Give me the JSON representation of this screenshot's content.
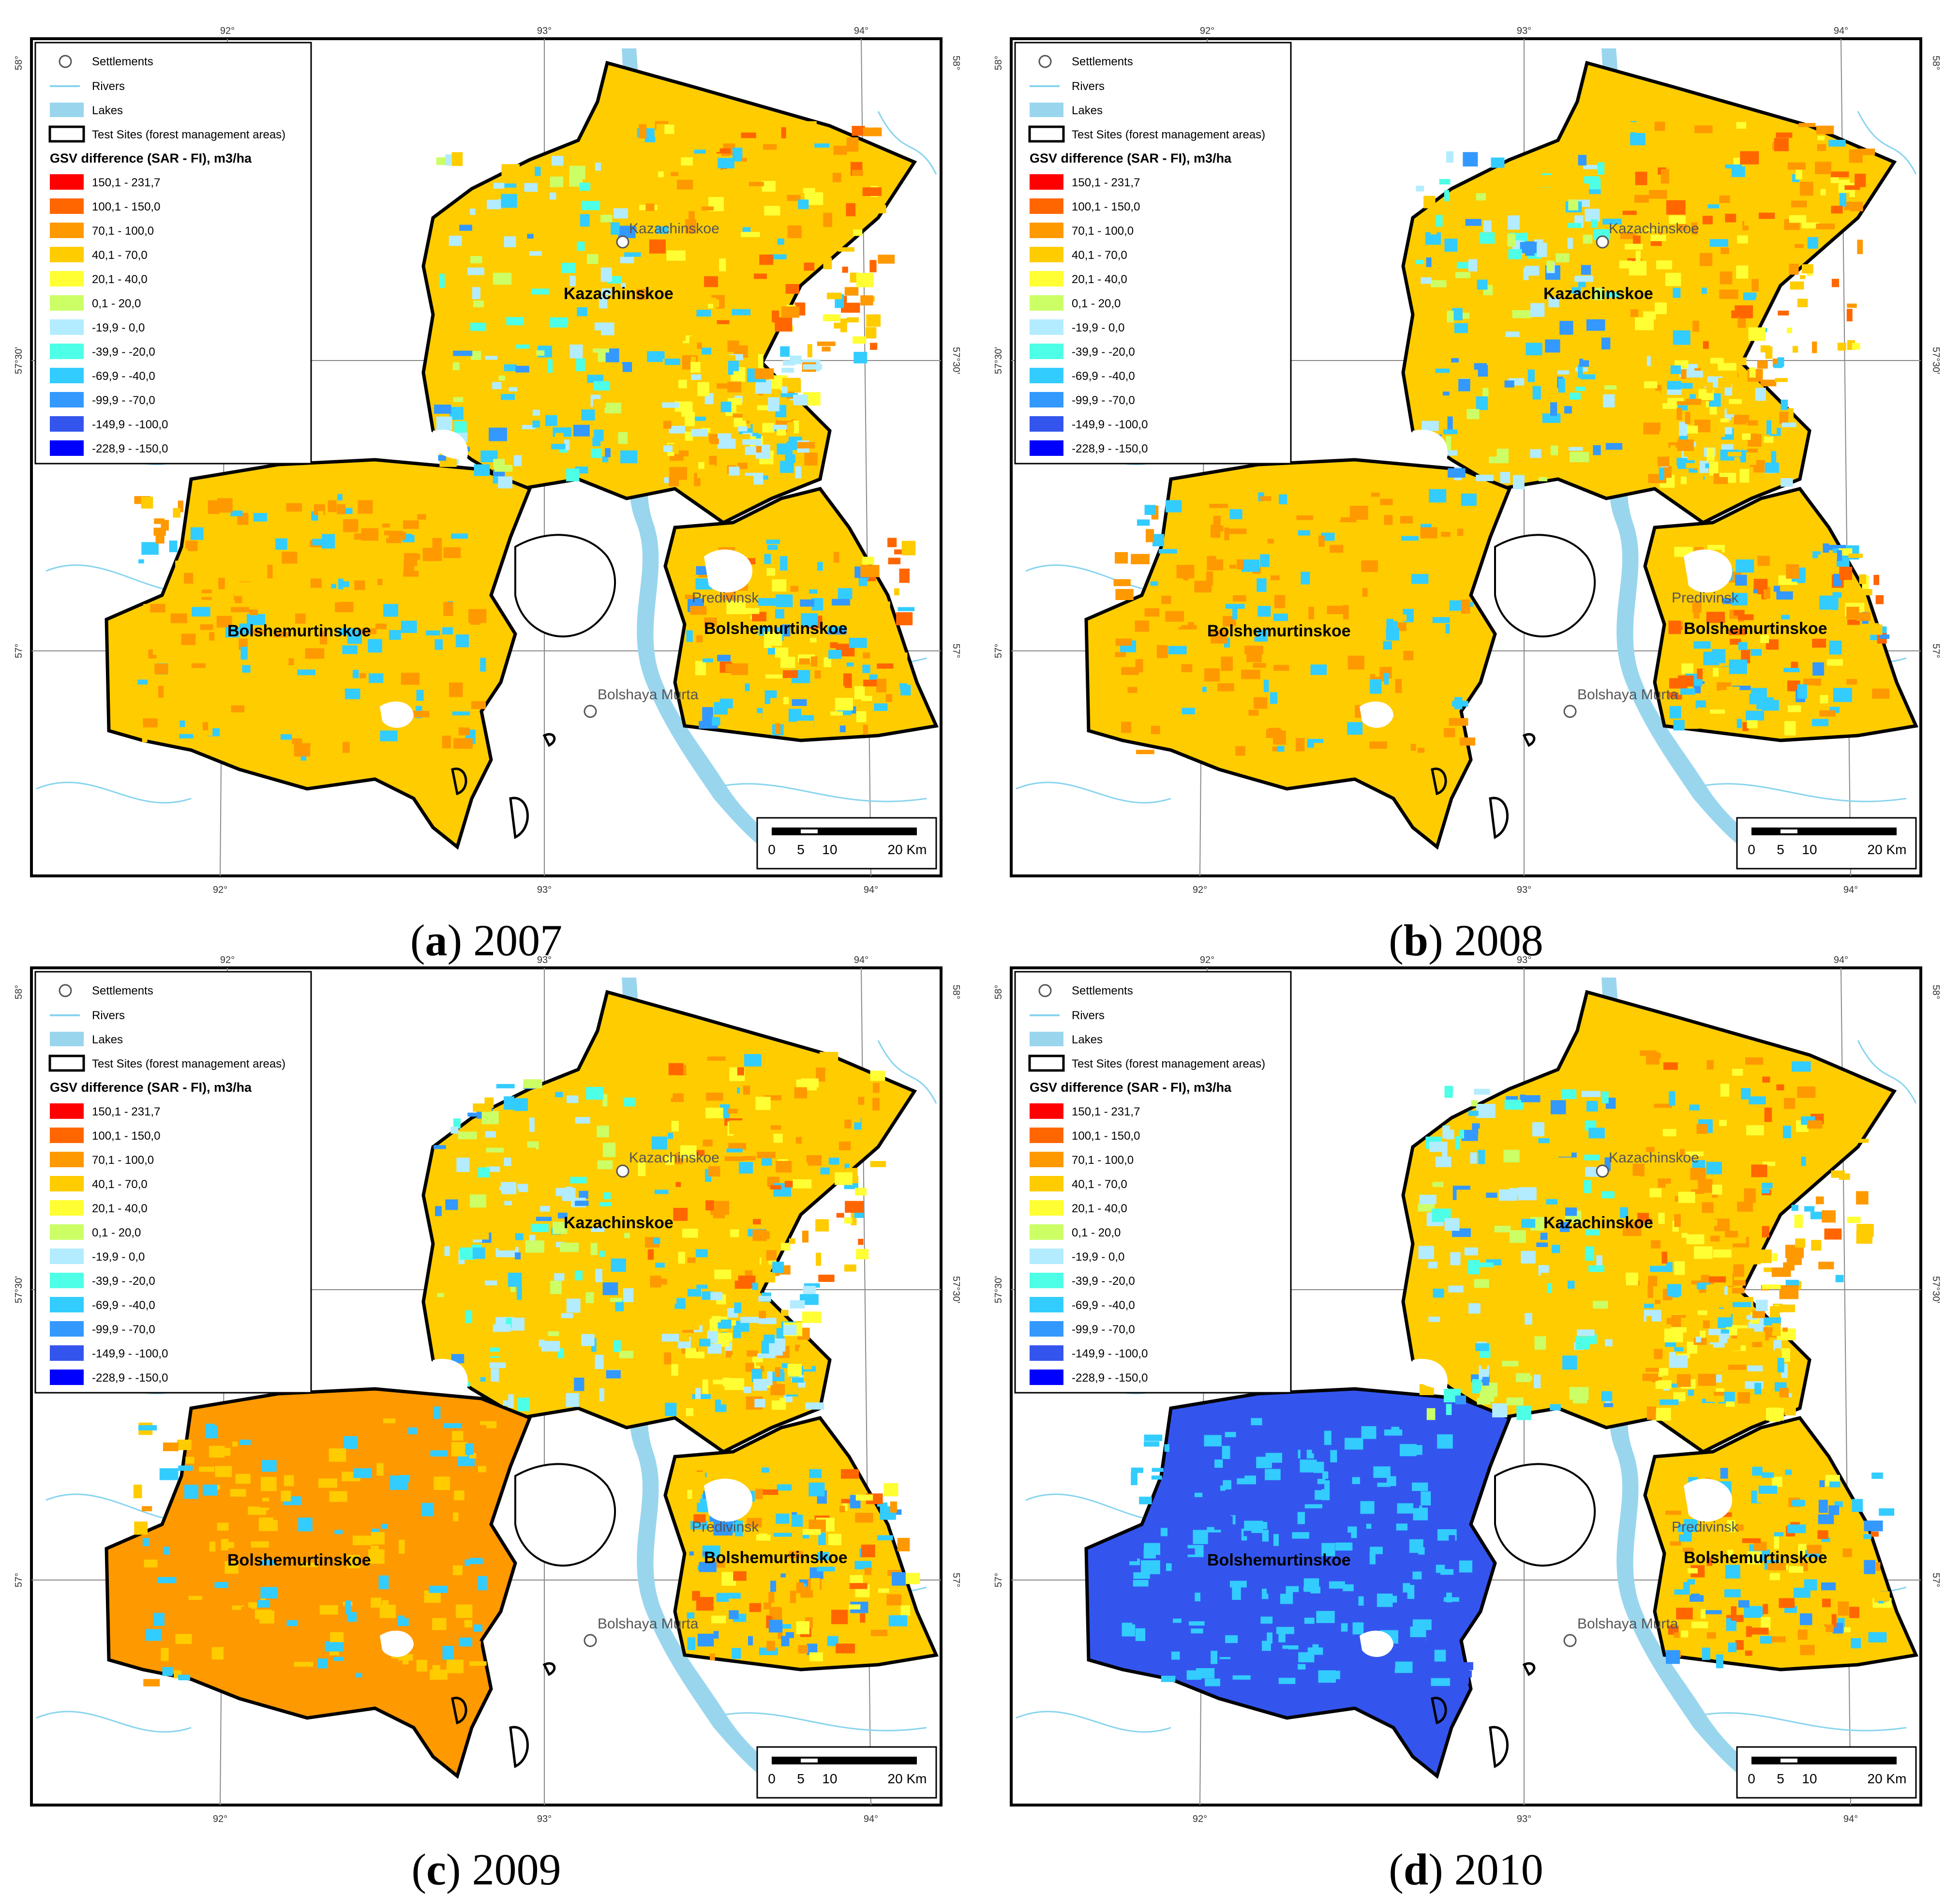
{
  "legend": {
    "settlements": "Settlements",
    "rivers": "Rivers",
    "lakes": "Lakes",
    "test_sites": "Test Sites (forest management areas)",
    "title": "GSV difference (SAR -  FI), m3/ha",
    "classes": [
      {
        "label": "150,1 - 231,7",
        "color": "#ff0000"
      },
      {
        "label": "100,1 - 150,0",
        "color": "#ff6600"
      },
      {
        "label": "70,1 - 100,0",
        "color": "#ff9900"
      },
      {
        "label": "40,1 - 70,0",
        "color": "#ffcc00"
      },
      {
        "label": "20,1 - 40,0",
        "color": "#ffff33"
      },
      {
        "label": "0,1 - 20,0",
        "color": "#ccff66"
      },
      {
        "label": "-19,9 - 0,0",
        "color": "#b3ecff"
      },
      {
        "label": "-39,9 - -20,0",
        "color": "#4dffe6"
      },
      {
        "label": "-69,9 - -40,0",
        "color": "#33ccff"
      },
      {
        "label": "-99,9 - -70,0",
        "color": "#3399ff"
      },
      {
        "label": "-149,9 - -100,0",
        "color": "#3355ee"
      },
      {
        "label": "-228,9 - -150,0",
        "color": "#0000ff"
      }
    ]
  },
  "labels": {
    "kazachinskoe_town": "Kazachinskoe",
    "kazachinskoe_site": "Kazachinskoe",
    "predivinsk": "Predivinsk",
    "bolshemurtinskoe_west": "Bolshemurtinskoe",
    "bolshemurtinskoe_east": "Bolshemurtinskoe",
    "bolshaya_murta": "Bolshaya Murta"
  },
  "ticks": {
    "lon": [
      "92°",
      "93°",
      "94°"
    ],
    "lat_top": "58°",
    "lat_mid": "57°30'",
    "lat_bot": "57°"
  },
  "scale": {
    "t0": "0",
    "t5": "5",
    "t10": "10",
    "t20": "20 Km"
  },
  "panels": [
    {
      "letter": "a",
      "year": "2007",
      "west_tint": "#ffcc00",
      "west_alt": "#ff9900"
    },
    {
      "letter": "b",
      "year": "2008",
      "west_tint": "#ffcc00",
      "west_alt": "#ff9900"
    },
    {
      "letter": "c",
      "year": "2009",
      "west_tint": "#ff9900",
      "west_alt": "#ffcc00"
    },
    {
      "letter": "d",
      "year": "2010",
      "west_tint": "#3355ee",
      "west_alt": "#33ccff"
    }
  ]
}
